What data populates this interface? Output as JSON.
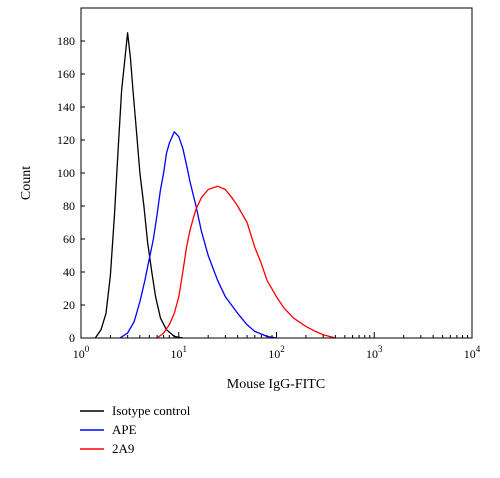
{
  "chart_data": {
    "type": "line",
    "xlabel": "Mouse IgG-FITC",
    "ylabel": "Count",
    "x_scale": "log",
    "xlim": [
      1,
      10000
    ],
    "ylim": [
      0,
      200
    ],
    "grid": false,
    "legend_placement": "bottom-left",
    "x_ticks": [
      {
        "value": 1,
        "base": "10",
        "exp": "0"
      },
      {
        "value": 10,
        "base": "10",
        "exp": "1"
      },
      {
        "value": 100,
        "base": "10",
        "exp": "2"
      },
      {
        "value": 1000,
        "base": "10",
        "exp": "3"
      },
      {
        "value": 10000,
        "base": "10",
        "exp": "4"
      }
    ],
    "y_ticks": [
      "0",
      "20",
      "40",
      "60",
      "80",
      "100",
      "120",
      "140",
      "160",
      "180"
    ],
    "series": [
      {
        "name": "Isotype control",
        "color": "#000000",
        "x": [
          1.4,
          1.6,
          1.8,
          2.0,
          2.2,
          2.4,
          2.6,
          2.8,
          3.0,
          3.2,
          3.4,
          3.7,
          4.0,
          4.4,
          4.8,
          5.3,
          5.8,
          6.5,
          7.5,
          9,
          11
        ],
        "y": [
          0,
          5,
          15,
          38,
          75,
          115,
          150,
          168,
          185,
          170,
          150,
          125,
          100,
          80,
          58,
          40,
          25,
          12,
          5,
          1,
          0
        ]
      },
      {
        "name": "APE",
        "color": "#0000ff",
        "x": [
          2.5,
          3,
          3.5,
          4,
          4.5,
          5,
          5.5,
          6,
          6.5,
          7,
          7.5,
          8,
          9,
          10,
          11,
          12,
          13,
          15,
          17,
          20,
          25,
          30,
          40,
          50,
          60,
          80,
          100
        ],
        "y": [
          0,
          3,
          10,
          22,
          35,
          48,
          60,
          75,
          90,
          100,
          112,
          118,
          125,
          122,
          115,
          105,
          95,
          80,
          65,
          50,
          35,
          25,
          15,
          8,
          4,
          1,
          0
        ]
      },
      {
        "name": "2A9",
        "color": "#ff0000",
        "x": [
          6,
          7,
          8,
          9,
          10,
          11,
          12,
          13,
          14,
          15,
          17,
          20,
          25,
          30,
          35,
          40,
          50,
          60,
          70,
          80,
          100,
          120,
          150,
          200,
          250,
          300,
          400
        ],
        "y": [
          0,
          3,
          8,
          15,
          25,
          40,
          55,
          65,
          72,
          78,
          85,
          90,
          92,
          90,
          85,
          80,
          70,
          55,
          45,
          35,
          25,
          18,
          12,
          7,
          4,
          2,
          0
        ]
      }
    ]
  }
}
